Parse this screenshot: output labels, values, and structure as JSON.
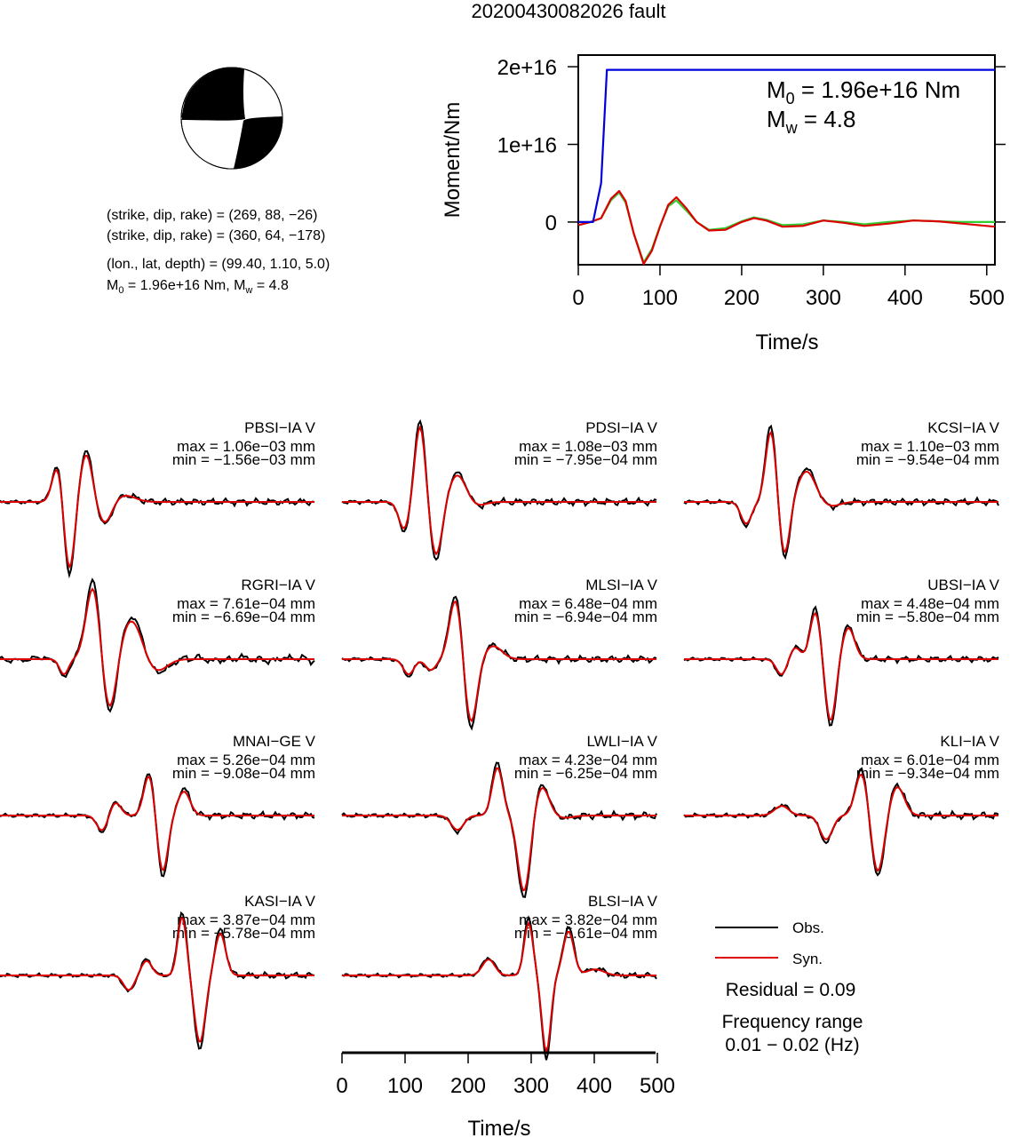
{
  "title": "20200430082026 fault",
  "mechanism": {
    "line1": "(strike, dip, rake) = (269, 88, −26)",
    "line2": "(strike, dip, rake) = (360, 64, −178)",
    "line3": "(lon., lat, depth) = (99.40, 1.10, 5.0)",
    "line4_M0": "M",
    "line4_sub0": "0",
    "line4_mid": " = 1.96e+16 Nm, M",
    "line4_subw": "w",
    "line4_end": " = 4.8"
  },
  "moment_panel": {
    "ylabel": "Moment/Nm",
    "xlabel": "Time/s",
    "m0_label": "M",
    "m0_sub": "0",
    "m0_value": " = 1.96e+16 Nm",
    "mw_label": "M",
    "mw_sub": "w",
    "mw_value": " = 4.8",
    "yticks": [
      "0",
      "1e+16",
      "2e+16"
    ],
    "xticks": [
      "0",
      "100",
      "200",
      "300",
      "400",
      "500"
    ],
    "colors": {
      "moment": "#0000dd",
      "green": "#33cc33",
      "red": "#dd0000"
    }
  },
  "stations": [
    {
      "name": "PBSI−IA V",
      "max": "max = 1.06e−03 mm",
      "min": "min = −1.56e−03 mm"
    },
    {
      "name": "PDSI−IA V",
      "max": "max = 1.08e−03 mm",
      "min": "min = −7.95e−04 mm"
    },
    {
      "name": "KCSI−IA V",
      "max": "max = 1.10e−03 mm",
      "min": "min = −9.54e−04 mm"
    },
    {
      "name": "RGRI−IA V",
      "max": "max = 7.61e−04 mm",
      "min": "min = −6.69e−04 mm"
    },
    {
      "name": "MLSI−IA V",
      "max": "max = 6.48e−04 mm",
      "min": "min = −6.94e−04 mm"
    },
    {
      "name": "UBSI−IA V",
      "max": "max = 4.48e−04 mm",
      "min": "min = −5.80e−04 mm"
    },
    {
      "name": "MNAI−GE V",
      "max": "max = 5.26e−04 mm",
      "min": "min = −9.08e−04 mm"
    },
    {
      "name": "LWLI−IA V",
      "max": "max = 4.23e−04 mm",
      "min": "min = −6.25e−04 mm"
    },
    {
      "name": "KLI−IA V",
      "max": "max = 6.01e−04 mm",
      "min": "min = −9.34e−04 mm"
    },
    {
      "name": "KASI−IA V",
      "max": "max = 3.87e−04 mm",
      "min": "min = −5.78e−04 mm"
    },
    {
      "name": "BLSI−IA V",
      "max": "max = 3.82e−04 mm",
      "min": "min = −5.61e−04 mm"
    }
  ],
  "waveform_axis": {
    "xlabel": "Time/s",
    "xticks": [
      "0",
      "100",
      "200",
      "300",
      "400",
      "500"
    ]
  },
  "legend": {
    "obs": "Obs.",
    "syn": "Syn.",
    "residual": "Residual = 0.09",
    "freq_title": "Frequency range",
    "freq_value": "0.01 − 0.02 (Hz)",
    "obs_color": "#000000",
    "syn_color": "#dd0000"
  },
  "chart_data": [
    {
      "type": "line",
      "title": "",
      "xlabel": "Time/s",
      "ylabel": "Moment/Nm",
      "xlim": [
        0,
        510
      ],
      "ylim": [
        -5500000000000000.0,
        2.15e+16
      ],
      "grid": false,
      "series": [
        {
          "x": [
            0,
            18,
            28,
            35,
            38,
            510
          ],
          "y": [
            0,
            0,
            5000000000000000.0,
            1.96e+16,
            1.96e+16,
            1.96e+16
          ]
        },
        {
          "x": [
            0,
            15,
            28,
            40,
            50,
            58,
            68,
            80,
            90,
            100,
            110,
            120,
            132,
            145,
            160,
            180,
            200,
            215,
            230,
            250,
            275,
            300,
            325,
            350,
            380,
            410,
            440,
            470,
            510
          ],
          "y": [
            -400000000000000.0,
            0,
            500000000000000.0,
            2800000000000000.0,
            3800000000000000.0,
            2500000000000000.0,
            -1500000000000000.0,
            -5200000000000000.0,
            -3500000000000000.0,
            -500000000000000.0,
            2000000000000000.0,
            2800000000000000.0,
            1500000000000000.0,
            0,
            -1000000000000000.0,
            -800000000000000.0,
            100000000000000.0,
            600000000000000.0,
            300000000000000.0,
            -400000000000000.0,
            -300000000000000.0,
            200000000000000.0,
            0,
            -300000000000000.0,
            0,
            200000000000000.0,
            100000000000000.0,
            0,
            0
          ]
        },
        {
          "x": [
            0,
            15,
            28,
            40,
            50,
            58,
            68,
            80,
            90,
            100,
            110,
            120,
            132,
            145,
            160,
            180,
            200,
            215,
            230,
            250,
            275,
            300,
            325,
            350,
            380,
            410,
            440,
            470,
            510
          ],
          "y": [
            -400000000000000.0,
            0,
            500000000000000.0,
            3000000000000000.0,
            4000000000000000.0,
            2700000000000000.0,
            -1500000000000000.0,
            -5400000000000000.0,
            -3700000000000000.0,
            -600000000000000.0,
            2200000000000000.0,
            3200000000000000.0,
            1800000000000000.0,
            0,
            -1100000000000000.0,
            -1000000000000000.0,
            0,
            500000000000000.0,
            200000000000000.0,
            -600000000000000.0,
            -500000000000000.0,
            200000000000000.0,
            -100000000000000.0,
            -500000000000000.0,
            -200000000000000.0,
            200000000000000.0,
            100000000000000.0,
            -200000000000000.0,
            -600000000000000.0
          ]
        }
      ]
    }
  ]
}
